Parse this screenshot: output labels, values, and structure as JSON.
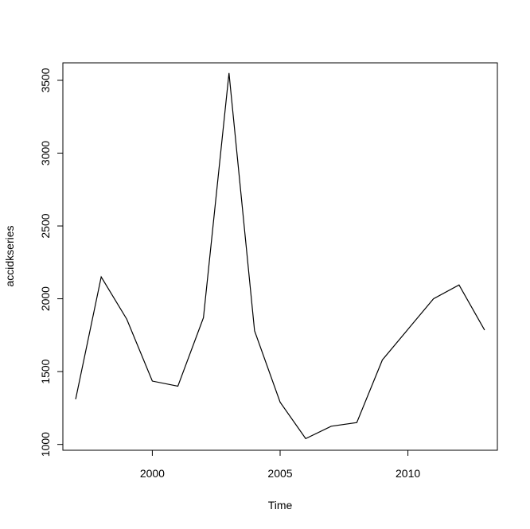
{
  "chart_data": {
    "type": "line",
    "title": "",
    "xlabel": "Time",
    "ylabel": "accidkseries",
    "xlim": [
      1996.5,
      2013.5
    ],
    "ylim": [
      960,
      3620
    ],
    "x_ticks": [
      2000,
      2005,
      2010
    ],
    "y_ticks": [
      1000,
      1500,
      2000,
      2500,
      3000,
      3500
    ],
    "grid": false,
    "legend": "none",
    "line_color": "#000000",
    "series": [
      {
        "x": [
          1997,
          1998,
          1999,
          2000,
          2001,
          2002,
          2003,
          2004,
          2005,
          2006,
          2007,
          2008,
          2009,
          2010,
          2011,
          2012,
          2013
        ],
        "values": [
          1310,
          2150,
          1860,
          1435,
          1400,
          1870,
          3550,
          1780,
          1290,
          1040,
          1125,
          1150,
          1580,
          1790,
          2000,
          2095,
          1785
        ]
      }
    ]
  }
}
